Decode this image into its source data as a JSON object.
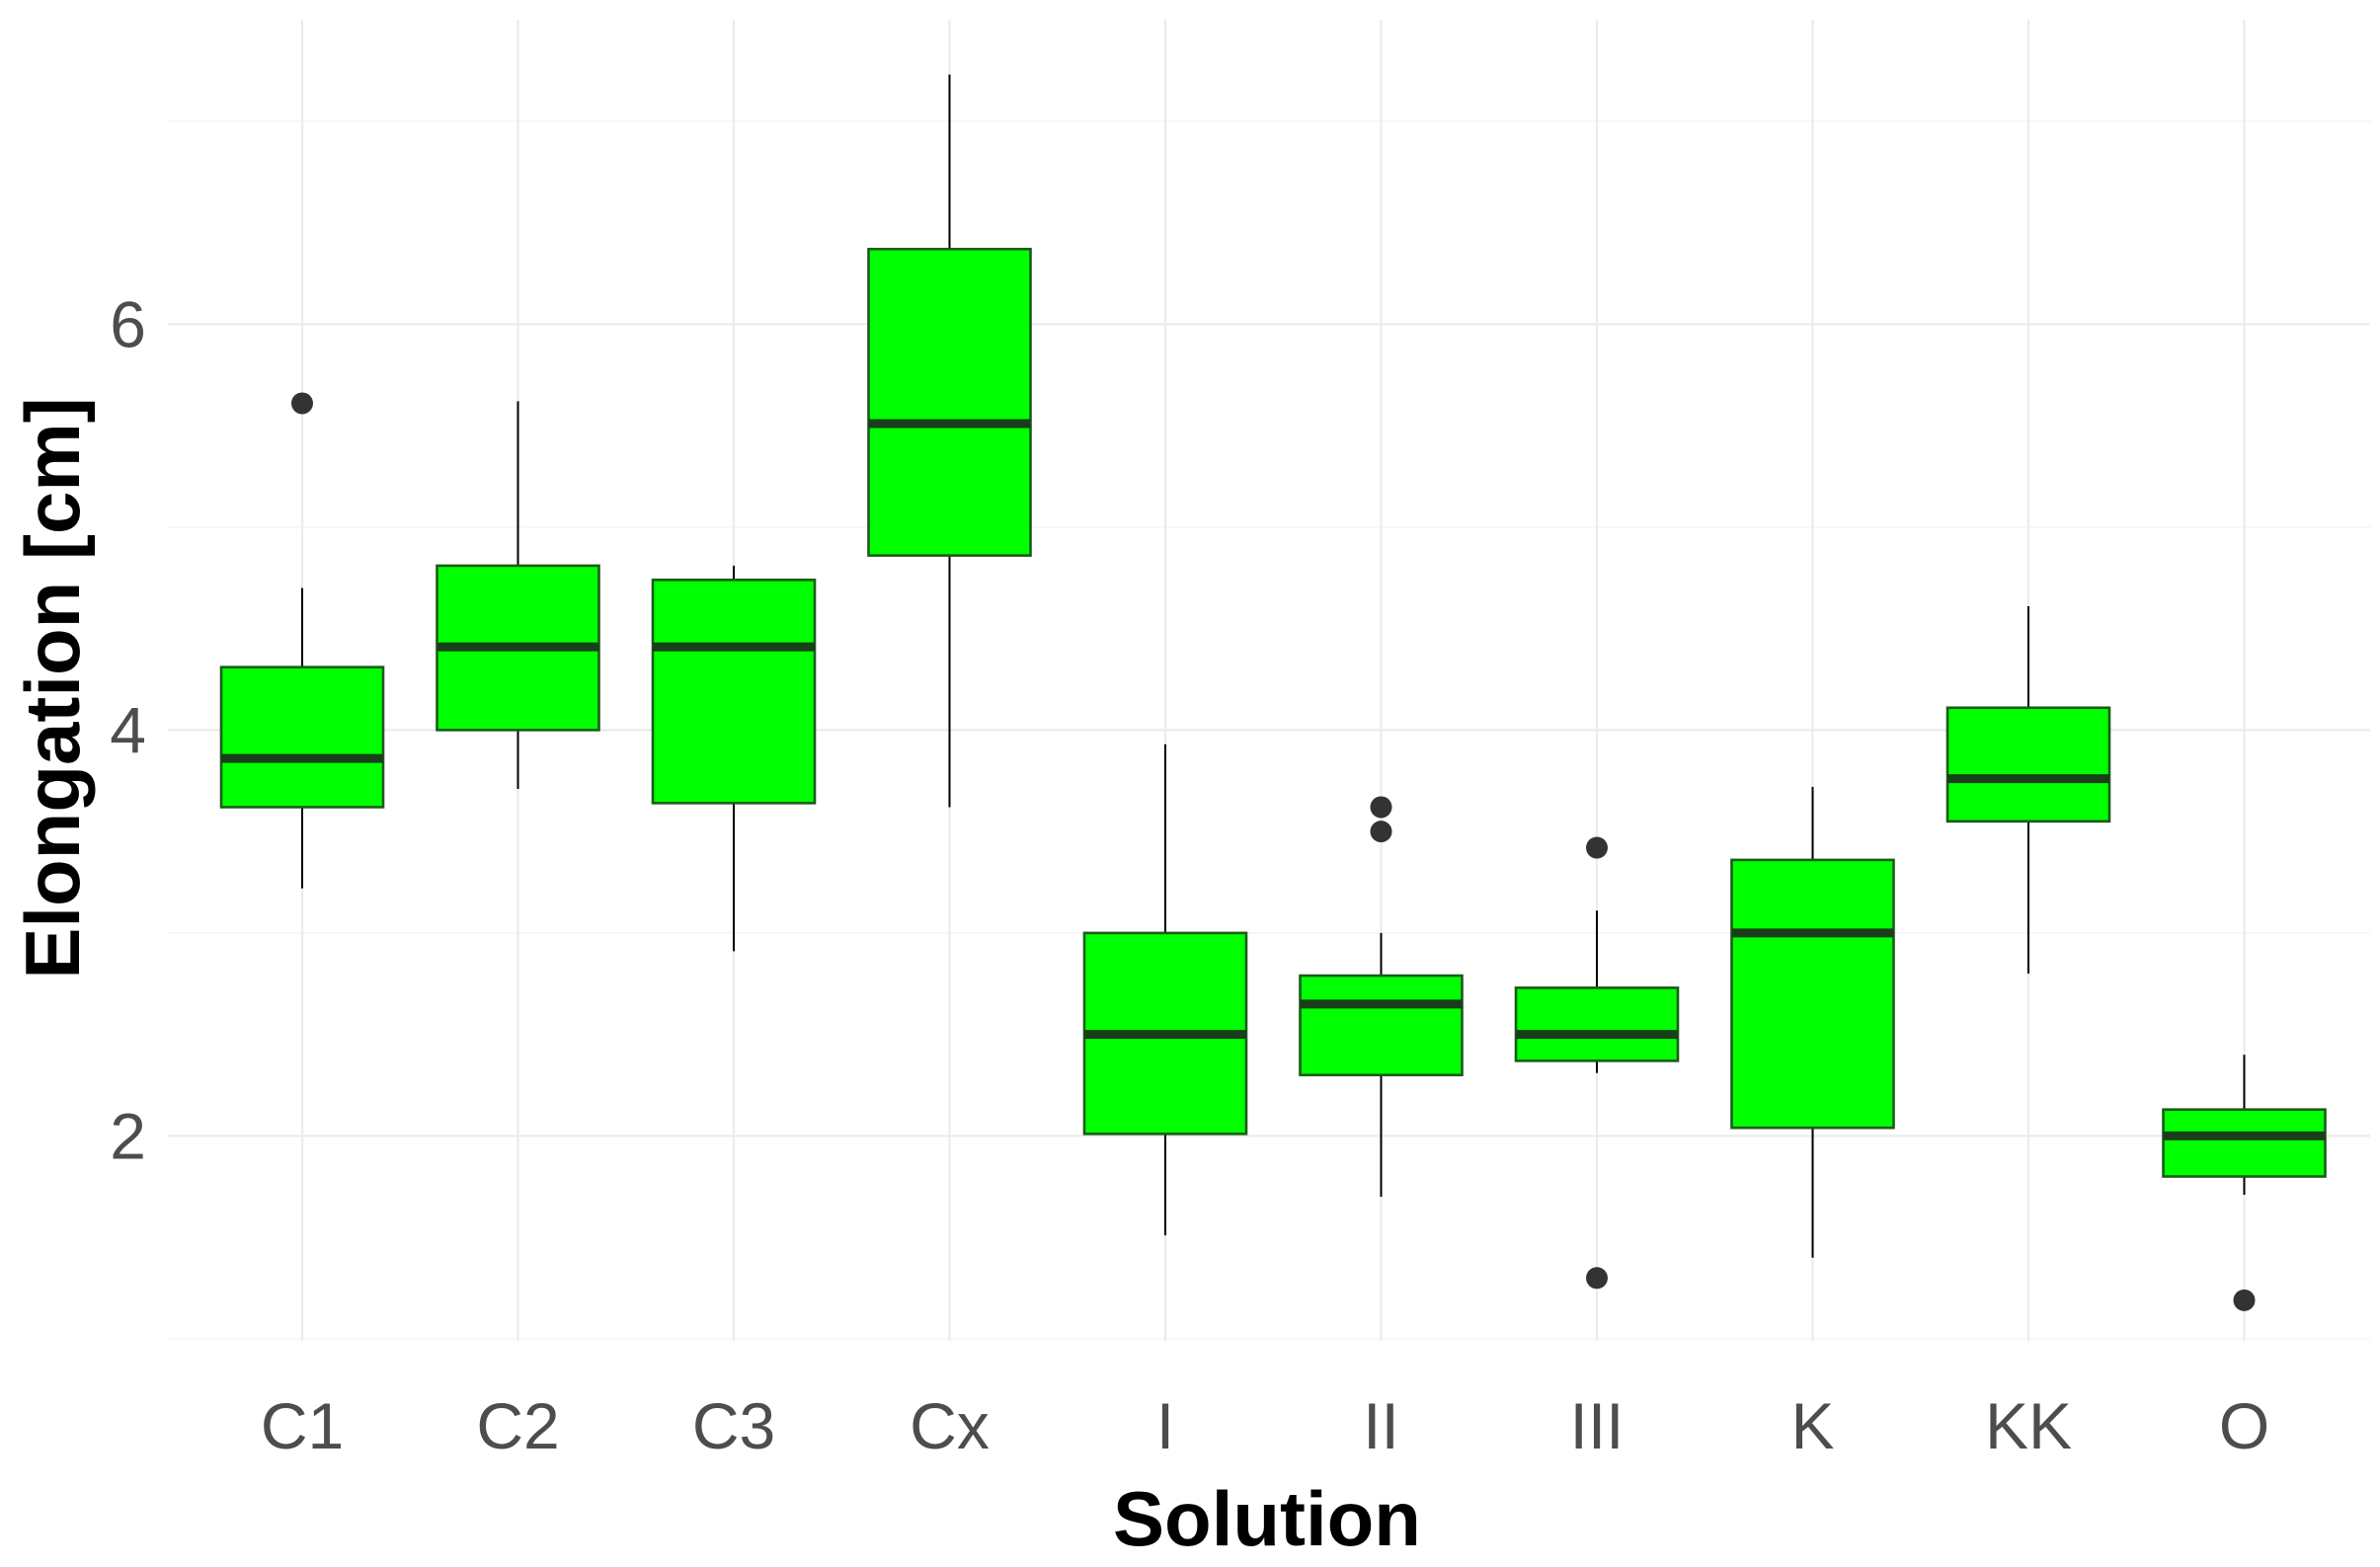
{
  "chart_data": {
    "type": "boxplot",
    "xlabel": "Solution",
    "ylabel": "Elongation [cm]",
    "ylim": [
      0.99,
      7.5
    ],
    "yticks": [
      2,
      4,
      6
    ],
    "grid": true,
    "legend": "none",
    "colors": {
      "box_fill": "#00ff00",
      "box_border": "#1a5c1a",
      "median": "#1a3d1a",
      "outlier": "#333333"
    },
    "categories": [
      "C1",
      "C2",
      "C3",
      "Cx",
      "I",
      "II",
      "III",
      "K",
      "KK",
      "O"
    ],
    "boxes": [
      {
        "category": "C1",
        "lower_whisker": 3.22,
        "q1": 3.62,
        "median": 3.86,
        "q3": 4.31,
        "upper_whisker": 4.7,
        "outliers": [
          5.61
        ]
      },
      {
        "category": "C2",
        "lower_whisker": 3.71,
        "q1": 4.0,
        "median": 4.41,
        "q3": 4.81,
        "upper_whisker": 5.62,
        "outliers": []
      },
      {
        "category": "C3",
        "lower_whisker": 2.91,
        "q1": 3.64,
        "median": 4.41,
        "q3": 4.74,
        "upper_whisker": 4.81,
        "outliers": []
      },
      {
        "category": "Cx",
        "lower_whisker": 3.62,
        "q1": 4.86,
        "median": 5.51,
        "q3": 6.37,
        "upper_whisker": 7.23,
        "outliers": []
      },
      {
        "category": "I",
        "lower_whisker": 1.51,
        "q1": 2.01,
        "median": 2.5,
        "q3": 3.0,
        "upper_whisker": 3.93,
        "outliers": []
      },
      {
        "category": "II",
        "lower_whisker": 1.7,
        "q1": 2.3,
        "median": 2.65,
        "q3": 2.79,
        "upper_whisker": 3.0,
        "outliers": [
          3.5,
          3.62
        ]
      },
      {
        "category": "III",
        "lower_whisker": 2.31,
        "q1": 2.37,
        "median": 2.5,
        "q3": 2.73,
        "upper_whisker": 3.11,
        "outliers": [
          3.42,
          1.3
        ]
      },
      {
        "category": "K",
        "lower_whisker": 1.4,
        "q1": 2.04,
        "median": 3.0,
        "q3": 3.36,
        "upper_whisker": 3.72,
        "outliers": []
      },
      {
        "category": "KK",
        "lower_whisker": 2.8,
        "q1": 3.55,
        "median": 3.76,
        "q3": 4.11,
        "upper_whisker": 4.61,
        "outliers": []
      },
      {
        "category": "O",
        "lower_whisker": 1.71,
        "q1": 1.8,
        "median": 2.0,
        "q3": 2.13,
        "upper_whisker": 2.4,
        "outliers": [
          1.19
        ]
      }
    ]
  }
}
